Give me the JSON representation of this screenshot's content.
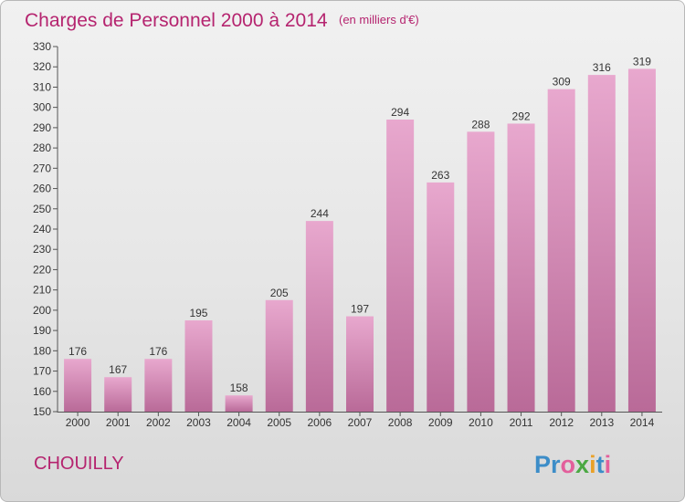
{
  "title": "Charges de Personnel 2000 à 2014",
  "unit_note": "(en milliers d'€)",
  "commune": "CHOUILLY",
  "logo_text": "Proxiti",
  "logo_colors": [
    "#3c8dc8",
    "#3c8dc8",
    "#e35f9b",
    "#4ba843",
    "#e9a128",
    "#3c8dc8",
    "#e35f9b"
  ],
  "colors": {
    "bar_top": "#e8a8ce",
    "bar_bottom": "#b96a98",
    "text": "#b5246f"
  },
  "chart_data": {
    "type": "bar",
    "title": "Charges de Personnel 2000 à 2014",
    "subtitle": "(en milliers d'€)",
    "xlabel": "",
    "ylabel": "",
    "categories": [
      "2000",
      "2001",
      "2002",
      "2003",
      "2004",
      "2005",
      "2006",
      "2007",
      "2008",
      "2009",
      "2010",
      "2011",
      "2012",
      "2013",
      "2014"
    ],
    "values": [
      176,
      167,
      176,
      195,
      158,
      205,
      244,
      197,
      294,
      263,
      288,
      292,
      309,
      316,
      319
    ],
    "ylim": [
      150,
      330
    ],
    "yticks": [
      150,
      160,
      170,
      180,
      190,
      200,
      210,
      220,
      230,
      240,
      250,
      260,
      270,
      280,
      290,
      300,
      310,
      320,
      330
    ],
    "grid": false
  }
}
